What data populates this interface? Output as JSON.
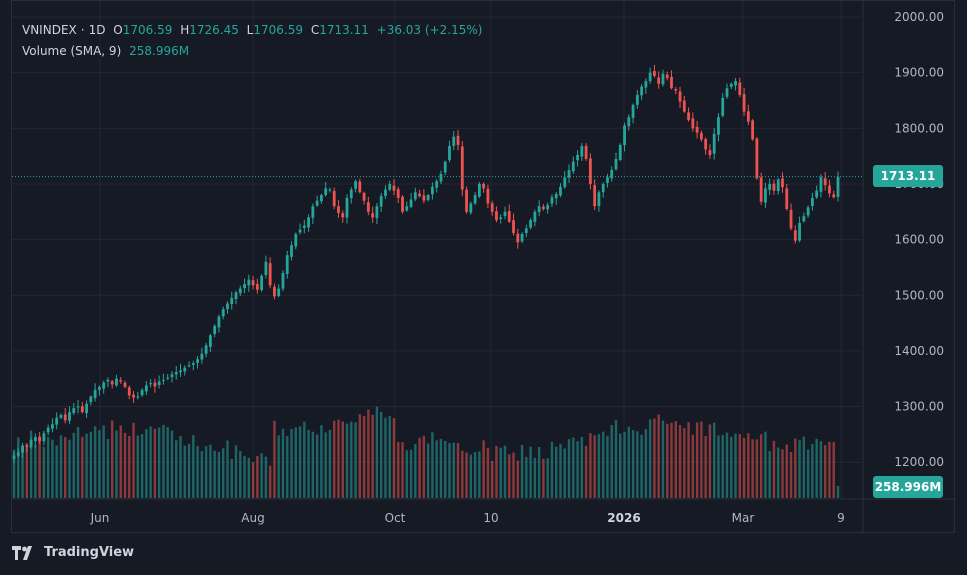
{
  "legend": {
    "symbol": "VNINDEX",
    "interval": "1D",
    "o_label": "O",
    "o_value": "1706.59",
    "h_label": "H",
    "h_value": "1726.45",
    "l_label": "L",
    "l_value": "1706.59",
    "c_label": "C",
    "c_value": "1713.11",
    "change": "+36.03 (+2.15%)",
    "volume_label": "Volume (SMA, 9)",
    "volume_value": "258.996M"
  },
  "price_badge": "1713.11",
  "volume_badge": "258.996M",
  "brand": "TradingView",
  "colors": {
    "up": "#26a69a",
    "down": "#ef5350",
    "background": "#161a25",
    "grid": "#232732",
    "text": "#b2b5be"
  },
  "chart_data": {
    "type": "candlestick",
    "y_axis_ticks": [
      2000,
      1900,
      1800,
      1700,
      1600,
      1500,
      1400,
      1300,
      1200
    ],
    "y_axis_labels": [
      "2000.00",
      "1900.00",
      "1800.00",
      "1700.00",
      "1600.00",
      "1500.00",
      "1400.00",
      "1300.00",
      "1200.00"
    ],
    "ylim": [
      1130,
      2010
    ],
    "x_axis_labels": [
      "Jun",
      "Aug",
      "Oct",
      "10",
      "2026",
      "Mar",
      "9"
    ],
    "last_price": 1713.11,
    "series": [
      {
        "name": "VNINDEX",
        "close": [
          1212,
          1218,
          1230,
          1227,
          1240,
          1245,
          1238,
          1252,
          1262,
          1268,
          1280,
          1285,
          1275,
          1290,
          1297,
          1300,
          1290,
          1305,
          1318,
          1330,
          1335,
          1343,
          1348,
          1340,
          1350,
          1345,
          1335,
          1320,
          1316,
          1318,
          1330,
          1338,
          1342,
          1336,
          1345,
          1348,
          1352,
          1358,
          1362,
          1365,
          1370,
          1374,
          1378,
          1385,
          1395,
          1410,
          1428,
          1445,
          1462,
          1475,
          1485,
          1495,
          1505,
          1512,
          1520,
          1528,
          1518,
          1510,
          1535,
          1560,
          1518,
          1498,
          1512,
          1540,
          1572,
          1590,
          1610,
          1618,
          1625,
          1640,
          1660,
          1670,
          1680,
          1692,
          1690,
          1660,
          1648,
          1640,
          1675,
          1690,
          1705,
          1685,
          1670,
          1650,
          1640,
          1660,
          1678,
          1690,
          1700,
          1688,
          1675,
          1650,
          1660,
          1672,
          1685,
          1678,
          1670,
          1680,
          1695,
          1705,
          1718,
          1740,
          1768,
          1785,
          1770,
          1690,
          1650,
          1665,
          1680,
          1700,
          1692,
          1665,
          1650,
          1635,
          1640,
          1650,
          1632,
          1612,
          1595,
          1610,
          1620,
          1635,
          1650,
          1660,
          1655,
          1662,
          1676,
          1682,
          1695,
          1712,
          1725,
          1740,
          1752,
          1768,
          1745,
          1700,
          1660,
          1685,
          1700,
          1712,
          1725,
          1745,
          1770,
          1805,
          1820,
          1842,
          1860,
          1875,
          1885,
          1900,
          1894,
          1880,
          1898,
          1890,
          1872,
          1868,
          1848,
          1830,
          1815,
          1800,
          1792,
          1780,
          1762,
          1752,
          1790,
          1820,
          1855,
          1872,
          1880,
          1885,
          1860,
          1830,
          1812,
          1780,
          1710,
          1668,
          1692,
          1700,
          1688,
          1708,
          1694,
          1655,
          1620,
          1598,
          1630,
          1642,
          1658,
          1675,
          1688,
          1712,
          1698,
          1683,
          1676,
          1713
        ]
      }
    ],
    "volume": {
      "name": "Volume (SMA, 9)",
      "last": "258.996M"
    }
  }
}
